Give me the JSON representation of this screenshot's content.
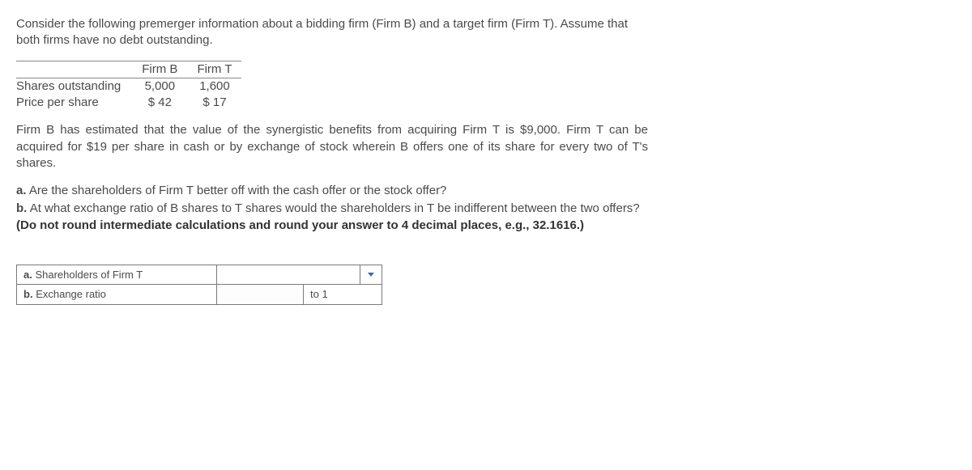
{
  "para1": "Consider the following premerger information about a bidding firm (Firm B) and a target firm (Firm T). Assume that both firms have no debt outstanding.",
  "table": {
    "col_b": "Firm B",
    "col_t": "Firm T",
    "rows": [
      {
        "label": "Shares outstanding",
        "b": "5,000",
        "t": "1,600"
      },
      {
        "label": "Price per share",
        "b": "$ 42",
        "t": "$ 17"
      }
    ]
  },
  "para2": "Firm B has estimated that the value of the synergistic benefits from acquiring Firm T is $9,000. Firm T can be acquired for $19 per share in cash or by exchange of stock wherein B offers one of its share for every two of T's shares.",
  "questions": {
    "a": {
      "marker": "a.",
      "text": "Are the shareholders of Firm T better off with the cash offer or the stock offer?"
    },
    "b": {
      "marker": "b.",
      "text": "At what exchange ratio of B shares to T shares would the shareholders in T be indifferent between the two offers?",
      "note": " (Do not round intermediate calculations and round your answer to 4 decimal places, e.g., 32.1616.)"
    }
  },
  "answers": {
    "a": {
      "marker": "a.",
      "label": "Shareholders of Firm T"
    },
    "b": {
      "marker": "b.",
      "label": "Exchange ratio",
      "suffix": "to 1"
    }
  },
  "colors": {
    "text": "#4a4a4a",
    "border": "#7a7a7a",
    "arrow": "#3b6ea5"
  }
}
